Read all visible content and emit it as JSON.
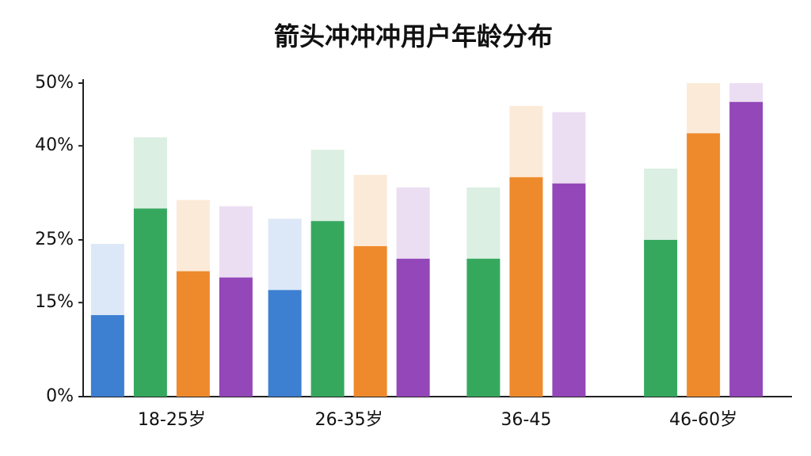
{
  "chart_data": {
    "type": "bar",
    "title": "箭头冲冲冲用户年龄分布",
    "categories": [
      "18-25岁",
      "26-35岁",
      "36-45",
      "46-60岁"
    ],
    "series": [
      {
        "color": "#3d7fd1",
        "values": [
          13,
          17,
          null,
          null
        ]
      },
      {
        "color": "#36a85e",
        "values": [
          30,
          28,
          22,
          25
        ]
      },
      {
        "color": "#ee8a2c",
        "values": [
          20,
          24,
          35,
          42
        ]
      },
      {
        "color": "#9347b8",
        "values": [
          19,
          22,
          34,
          47
        ]
      }
    ],
    "ylim": [
      0,
      50
    ],
    "yticks": [
      {
        "value": 0,
        "label": "0%"
      },
      {
        "value": 15,
        "label": "15%"
      },
      {
        "value": 25,
        "label": "25%"
      },
      {
        "value": 40,
        "label": "40%"
      },
      {
        "value": 50,
        "label": "50%"
      }
    ]
  }
}
